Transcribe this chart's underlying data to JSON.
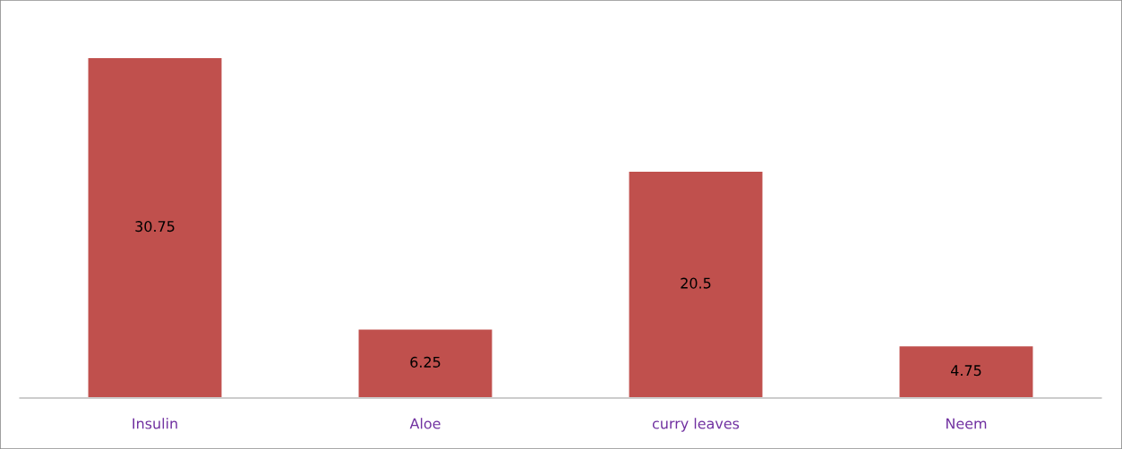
{
  "chart_data": {
    "type": "bar",
    "categories": [
      "Insulin",
      "Aloe",
      "curry leaves",
      "Neem"
    ],
    "values": [
      30.75,
      6.25,
      20.5,
      4.75
    ],
    "color": "#c0504d",
    "data_labels": true,
    "grid": false,
    "legend": false,
    "tick_labels": "x"
  }
}
